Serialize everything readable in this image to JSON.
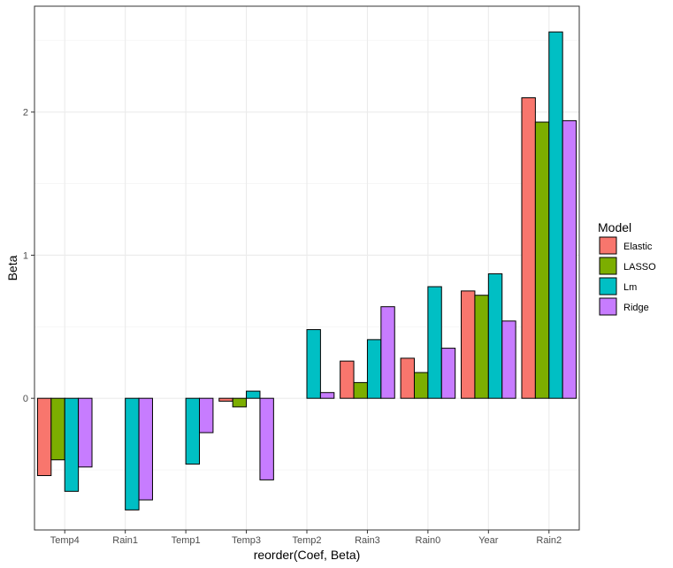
{
  "chart_data": {
    "type": "bar",
    "title": "",
    "xlabel": "reorder(Coef, Beta)",
    "ylabel": "Beta",
    "categories": [
      "Temp4",
      "Rain1",
      "Temp1",
      "Temp3",
      "Temp2",
      "Rain3",
      "Rain0",
      "Year",
      "Rain2"
    ],
    "series": [
      {
        "name": "Elastic",
        "color": "#F8766D",
        "values": [
          -0.54,
          0.0,
          0.0,
          -0.02,
          0.0,
          0.26,
          0.28,
          0.75,
          2.1
        ]
      },
      {
        "name": "LASSO",
        "color": "#7CAE00",
        "values": [
          -0.43,
          0.0,
          0.0,
          -0.06,
          0.0,
          0.11,
          0.18,
          0.72,
          1.93
        ]
      },
      {
        "name": "Lm",
        "color": "#00BFC4",
        "values": [
          -0.65,
          -0.78,
          -0.46,
          0.05,
          0.48,
          0.41,
          0.78,
          0.87,
          2.56
        ]
      },
      {
        "name": "Ridge",
        "color": "#C77CFF",
        "values": [
          -0.48,
          -0.71,
          -0.24,
          -0.57,
          0.04,
          0.64,
          0.35,
          0.54,
          1.94
        ]
      }
    ],
    "ylim": [
      -0.92,
      2.74
    ],
    "yticks": [
      0,
      1,
      2
    ],
    "grid": true,
    "legend": {
      "title": "Model",
      "position": "right"
    }
  }
}
